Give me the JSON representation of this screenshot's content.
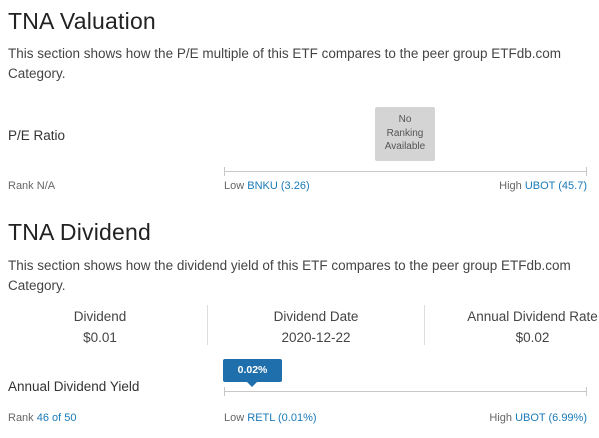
{
  "valuation": {
    "title": "TNA Valuation",
    "description": "This section shows how the P/E multiple of this ETF compares to the peer group ETFdb.com Category.",
    "row_label": "P/E Ratio",
    "no_ranking": {
      "line1": "No",
      "line2": "Ranking",
      "line3": "Available"
    },
    "rank_prefix": "Rank",
    "rank_value": "N/A",
    "low_prefix": "Low",
    "low_value": "BNKU (3.26)",
    "high_prefix": "High",
    "high_value": "UBOT (45.7)"
  },
  "dividend": {
    "title": "TNA Dividend",
    "description": "This section shows how the dividend yield of this ETF compares to the peer group ETFdb.com Category.",
    "stats": [
      {
        "label": "Dividend",
        "value": "$0.01"
      },
      {
        "label": "Dividend Date",
        "value": "2020-12-22"
      },
      {
        "label": "Annual Dividend Rate",
        "value": "$0.02"
      }
    ],
    "row_label": "Annual Dividend Yield",
    "yield_marker": "0.02%",
    "rank_prefix": "Rank",
    "rank_value": "46 of 50",
    "low_prefix": "Low",
    "low_value": "RETL (0.01%)",
    "high_prefix": "High",
    "high_value": "UBOT (6.99%)"
  },
  "colors": {
    "link": "#1a7ab8",
    "marker": "#1f6fad",
    "no_rank_box": "#d4d4d4"
  }
}
